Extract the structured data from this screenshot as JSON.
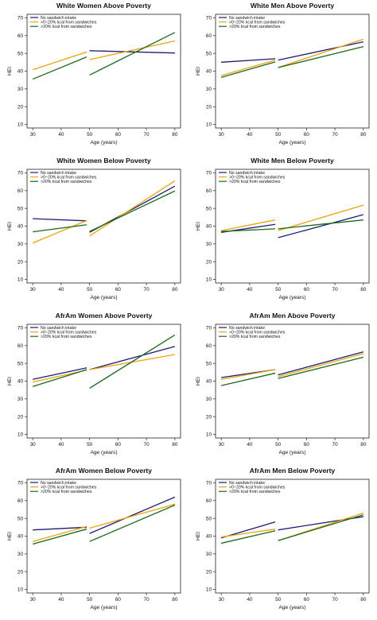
{
  "legend_labels": [
    "No sandwich intake",
    ">0~20% kcal from sandwiches",
    ">20% kcal from sandwiches"
  ],
  "colors": {
    "none": "#1c1c7a",
    "low": "#f0a30a",
    "high": "#1a6b1a"
  },
  "chart_data": [
    {
      "type": "line",
      "title": "White Women Above Poverty",
      "xlabel": "Age (years)",
      "ylabel": "HEI",
      "xticks": [
        30,
        40,
        50,
        60,
        70,
        80
      ],
      "yticks": [
        10,
        20,
        30,
        40,
        50,
        60,
        70
      ],
      "xlim": [
        28,
        82
      ],
      "ylim": [
        8,
        72
      ],
      "grid": false,
      "legend_position": "top-left",
      "series": [
        {
          "name": "No sandwich intake",
          "color_key": "none",
          "segments": [
            {
              "x": [
                50,
                80
              ],
              "y": [
                51.5,
                50.2
              ]
            }
          ]
        },
        {
          "name": ">0~20% kcal from sandwiches",
          "color_key": "low",
          "segments": [
            {
              "x": [
                30,
                49
              ],
              "y": [
                40.8,
                50.8
              ]
            },
            {
              "x": [
                50,
                80
              ],
              "y": [
                46.5,
                57.0
              ]
            }
          ]
        },
        {
          "name": ">20% kcal from sandwiches",
          "color_key": "high",
          "segments": [
            {
              "x": [
                30,
                49
              ],
              "y": [
                35.5,
                48.0
              ]
            },
            {
              "x": [
                50,
                80
              ],
              "y": [
                37.8,
                61.8
              ]
            }
          ]
        }
      ]
    },
    {
      "type": "line",
      "title": "White Men Above Poverty",
      "xlabel": "Age (years)",
      "ylabel": "HEI",
      "xticks": [
        30,
        40,
        50,
        60,
        70,
        80
      ],
      "yticks": [
        10,
        20,
        30,
        40,
        50,
        60,
        70
      ],
      "xlim": [
        28,
        82
      ],
      "ylim": [
        8,
        72
      ],
      "grid": false,
      "legend_position": "top-left",
      "series": [
        {
          "name": "No sandwich intake",
          "color_key": "none",
          "segments": [
            {
              "x": [
                30,
                49
              ],
              "y": [
                45.0,
                47.0
              ]
            },
            {
              "x": [
                50,
                80
              ],
              "y": [
                46.2,
                56.5
              ]
            }
          ]
        },
        {
          "name": ">0~20% kcal from sandwiches",
          "color_key": "low",
          "segments": [
            {
              "x": [
                30,
                49
              ],
              "y": [
                37.5,
                46.2
              ]
            },
            {
              "x": [
                50,
                80
              ],
              "y": [
                42.0,
                58.0
              ]
            }
          ]
        },
        {
          "name": ">20% kcal from sandwiches",
          "color_key": "high",
          "segments": [
            {
              "x": [
                30,
                49
              ],
              "y": [
                36.5,
                45.2
              ]
            },
            {
              "x": [
                50,
                80
              ],
              "y": [
                42.0,
                53.8
              ]
            }
          ]
        }
      ]
    },
    {
      "type": "line",
      "title": "White Women Below Poverty",
      "xlabel": "Age (years)",
      "ylabel": "HEI",
      "xticks": [
        30,
        40,
        50,
        60,
        70,
        80
      ],
      "yticks": [
        10,
        20,
        30,
        40,
        50,
        60,
        70
      ],
      "xlim": [
        28,
        82
      ],
      "ylim": [
        8,
        72
      ],
      "grid": false,
      "legend_position": "top-left",
      "series": [
        {
          "name": "No sandwich intake",
          "color_key": "none",
          "segments": [
            {
              "x": [
                30,
                49
              ],
              "y": [
                44.2,
                43.0
              ]
            },
            {
              "x": [
                50,
                80
              ],
              "y": [
                36.5,
                62.5
              ]
            }
          ]
        },
        {
          "name": ">0~20% kcal from sandwiches",
          "color_key": "low",
          "segments": [
            {
              "x": [
                30,
                49
              ],
              "y": [
                30.5,
                43.2
              ]
            },
            {
              "x": [
                50,
                80
              ],
              "y": [
                34.5,
                65.5
              ]
            }
          ]
        },
        {
          "name": ">20% kcal from sandwiches",
          "color_key": "high",
          "segments": [
            {
              "x": [
                30,
                49
              ],
              "y": [
                36.8,
                40.8
              ]
            },
            {
              "x": [
                50,
                80
              ],
              "y": [
                37.0,
                59.8
              ]
            }
          ]
        }
      ]
    },
    {
      "type": "line",
      "title": "White Men Below Poverty",
      "xlabel": "Age (years)",
      "ylabel": "HEI",
      "xticks": [
        30,
        40,
        50,
        60,
        70,
        80
      ],
      "yticks": [
        10,
        20,
        30,
        40,
        50,
        60,
        70
      ],
      "xlim": [
        28,
        82
      ],
      "ylim": [
        8,
        72
      ],
      "grid": false,
      "legend_position": "top-left",
      "series": [
        {
          "name": "No sandwich intake",
          "color_key": "none",
          "segments": [
            {
              "x": [
                30,
                49
              ],
              "y": [
                36.5,
                41.0
              ]
            },
            {
              "x": [
                50,
                80
              ],
              "y": [
                33.5,
                46.5
              ]
            }
          ]
        },
        {
          "name": ">0~20% kcal from sandwiches",
          "color_key": "low",
          "segments": [
            {
              "x": [
                30,
                49
              ],
              "y": [
                37.5,
                43.5
              ]
            },
            {
              "x": [
                50,
                80
              ],
              "y": [
                37.5,
                51.8
              ]
            }
          ]
        },
        {
          "name": ">20% kcal from sandwiches",
          "color_key": "high",
          "segments": [
            {
              "x": [
                30,
                49
              ],
              "y": [
                37.0,
                38.5
              ]
            },
            {
              "x": [
                50,
                80
              ],
              "y": [
                38.5,
                43.5
              ]
            }
          ]
        }
      ]
    },
    {
      "type": "line",
      "title": "AfrAm Women Above Poverty",
      "xlabel": "Age (years)",
      "ylabel": "HEI",
      "xticks": [
        30,
        40,
        50,
        60,
        70,
        80
      ],
      "yticks": [
        10,
        20,
        30,
        40,
        50,
        60,
        70
      ],
      "xlim": [
        28,
        82
      ],
      "ylim": [
        8,
        72
      ],
      "grid": false,
      "legend_position": "top-left",
      "series": [
        {
          "name": "No sandwich intake",
          "color_key": "none",
          "segments": [
            {
              "x": [
                30,
                49
              ],
              "y": [
                41.0,
                47.5
              ]
            },
            {
              "x": [
                50,
                80
              ],
              "y": [
                46.5,
                59.5
              ]
            }
          ]
        },
        {
          "name": ">0~20% kcal from sandwiches",
          "color_key": "low",
          "segments": [
            {
              "x": [
                30,
                49
              ],
              "y": [
                39.5,
                46.2
              ]
            },
            {
              "x": [
                50,
                80
              ],
              "y": [
                46.5,
                55.0
              ]
            }
          ]
        },
        {
          "name": ">20% kcal from sandwiches",
          "color_key": "high",
          "segments": [
            {
              "x": [
                30,
                49
              ],
              "y": [
                37.0,
                46.5
              ]
            },
            {
              "x": [
                50,
                80
              ],
              "y": [
                36.0,
                66.0
              ]
            }
          ]
        }
      ]
    },
    {
      "type": "line",
      "title": "AfrAm Men Above Poverty",
      "xlabel": "Age (years)",
      "ylabel": "HEI",
      "xticks": [
        30,
        40,
        50,
        60,
        70,
        80
      ],
      "yticks": [
        10,
        20,
        30,
        40,
        50,
        60,
        70
      ],
      "xlim": [
        28,
        82
      ],
      "ylim": [
        8,
        72
      ],
      "grid": false,
      "legend_position": "top-left",
      "series": [
        {
          "name": "No sandwich intake",
          "color_key": "none",
          "segments": [
            {
              "x": [
                30,
                49
              ],
              "y": [
                42.0,
                46.5
              ]
            },
            {
              "x": [
                50,
                80
              ],
              "y": [
                43.5,
                56.5
              ]
            }
          ]
        },
        {
          "name": ">0~20% kcal from sandwiches",
          "color_key": "low",
          "segments": [
            {
              "x": [
                30,
                49
              ],
              "y": [
                41.0,
                46.5
              ]
            },
            {
              "x": [
                50,
                80
              ],
              "y": [
                42.5,
                55.5
              ]
            }
          ]
        },
        {
          "name": ">20% kcal from sandwiches",
          "color_key": "high",
          "segments": [
            {
              "x": [
                30,
                49
              ],
              "y": [
                37.5,
                44.5
              ]
            },
            {
              "x": [
                50,
                80
              ],
              "y": [
                41.5,
                53.5
              ]
            }
          ]
        }
      ]
    },
    {
      "type": "line",
      "title": "AfrAm Women Below Poverty",
      "xlabel": "Age (years)",
      "ylabel": "HEI",
      "xticks": [
        30,
        40,
        50,
        60,
        70,
        80
      ],
      "yticks": [
        10,
        20,
        30,
        40,
        50,
        60,
        70
      ],
      "xlim": [
        28,
        82
      ],
      "ylim": [
        8,
        72
      ],
      "grid": false,
      "legend_position": "top-left",
      "series": [
        {
          "name": "No sandwich intake",
          "color_key": "none",
          "segments": [
            {
              "x": [
                30,
                49
              ],
              "y": [
                43.5,
                45.0
              ]
            },
            {
              "x": [
                50,
                80
              ],
              "y": [
                41.5,
                62.0
              ]
            }
          ]
        },
        {
          "name": ">0~20% kcal from sandwiches",
          "color_key": "low",
          "segments": [
            {
              "x": [
                30,
                49
              ],
              "y": [
                37.0,
                45.5
              ]
            },
            {
              "x": [
                50,
                80
              ],
              "y": [
                44.5,
                58.0
              ]
            }
          ]
        },
        {
          "name": ">20% kcal from sandwiches",
          "color_key": "high",
          "segments": [
            {
              "x": [
                30,
                49
              ],
              "y": [
                35.5,
                44.0
              ]
            },
            {
              "x": [
                50,
                80
              ],
              "y": [
                37.0,
                57.5
              ]
            }
          ]
        }
      ]
    },
    {
      "type": "line",
      "title": "AfrAm Men Below Poverty",
      "xlabel": "Age (years)",
      "ylabel": "HEI",
      "xticks": [
        30,
        40,
        50,
        60,
        70,
        80
      ],
      "yticks": [
        10,
        20,
        30,
        40,
        50,
        60,
        70
      ],
      "xlim": [
        28,
        82
      ],
      "ylim": [
        8,
        72
      ],
      "grid": false,
      "legend_position": "top-left",
      "series": [
        {
          "name": "No sandwich intake",
          "color_key": "none",
          "segments": [
            {
              "x": [
                30,
                49
              ],
              "y": [
                39.0,
                48.0
              ]
            },
            {
              "x": [
                50,
                80
              ],
              "y": [
                43.5,
                51.0
              ]
            }
          ]
        },
        {
          "name": ">0~20% kcal from sandwiches",
          "color_key": "low",
          "segments": [
            {
              "x": [
                30,
                49
              ],
              "y": [
                39.5,
                44.0
              ]
            },
            {
              "x": [
                50,
                80
              ],
              "y": [
                37.5,
                53.0
              ]
            }
          ]
        },
        {
          "name": ">20% kcal from sandwiches",
          "color_key": "high",
          "segments": [
            {
              "x": [
                30,
                49
              ],
              "y": [
                36.0,
                43.0
              ]
            },
            {
              "x": [
                50,
                80
              ],
              "y": [
                37.5,
                52.0
              ]
            }
          ]
        }
      ]
    }
  ]
}
